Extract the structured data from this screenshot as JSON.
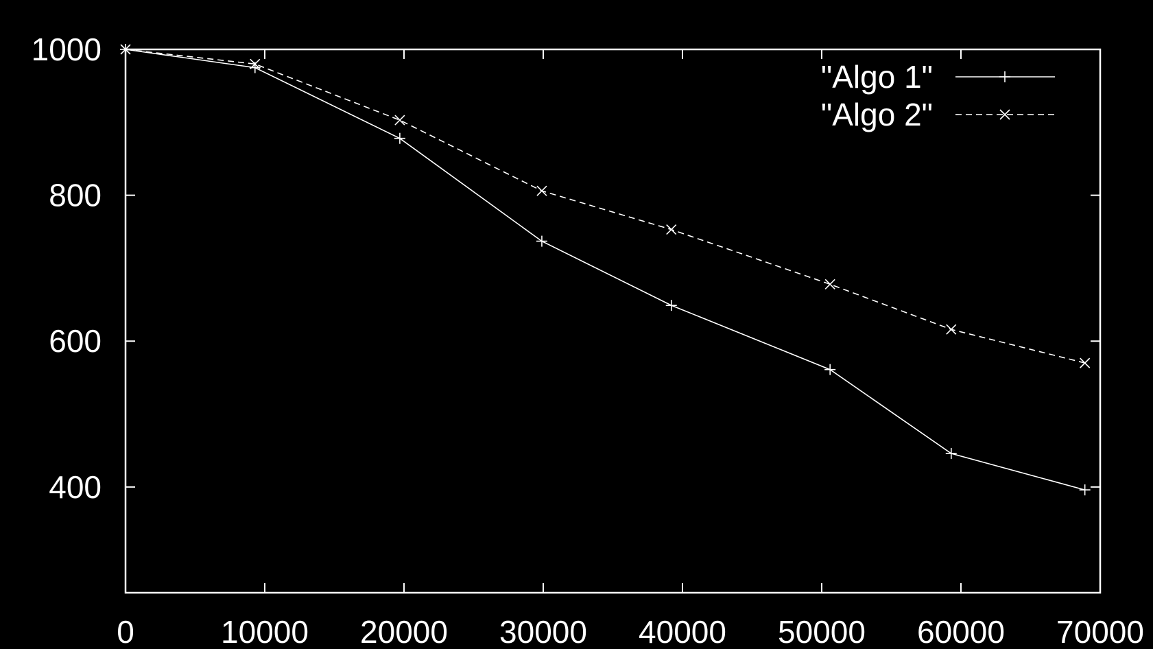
{
  "chart_data": {
    "type": "line",
    "title": "",
    "xlabel": "",
    "ylabel": "",
    "xlim": [
      0,
      70000
    ],
    "ylim": [
      255,
      1000
    ],
    "xticks": [
      0,
      10000,
      20000,
      30000,
      40000,
      50000,
      60000,
      70000
    ],
    "xtick_labels": [
      "0",
      "10000",
      "20000",
      "30000",
      "40000",
      "50000",
      "60000",
      "70000"
    ],
    "yticks": [
      400,
      600,
      800,
      1000
    ],
    "ytick_labels": [
      "400",
      "600",
      "800",
      "1000"
    ],
    "grid": false,
    "legend_position": "top-right",
    "background_color": "#000000",
    "foreground_color": "#ffffff",
    "series": [
      {
        "name": "\"Algo 1\"",
        "marker": "plus",
        "line_style": "solid",
        "x": [
          0,
          9300,
          19700,
          29900,
          39200,
          50600,
          59300,
          68900
        ],
        "y": [
          1000,
          975,
          878,
          737,
          649,
          561,
          446,
          396
        ]
      },
      {
        "name": "\"Algo 2\"",
        "marker": "cross",
        "line_style": "dashed",
        "x": [
          0,
          9300,
          19700,
          29900,
          39200,
          50600,
          59300,
          68900
        ],
        "y": [
          1000,
          980,
          903,
          806,
          753,
          678,
          616,
          570
        ]
      }
    ]
  }
}
